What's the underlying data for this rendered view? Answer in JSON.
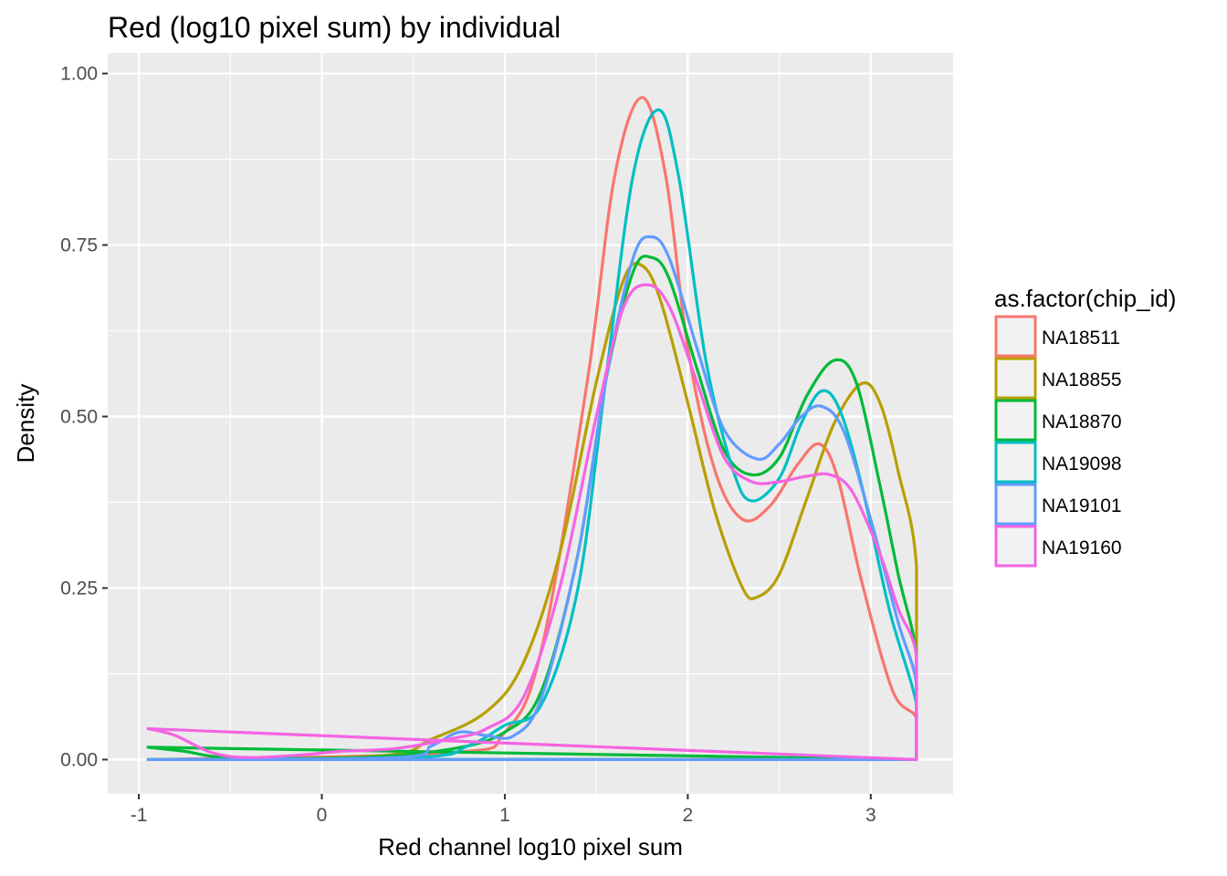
{
  "chart_data": {
    "type": "line",
    "subtype": "density",
    "title": "Red (log10 pixel sum) by individual",
    "xlabel": "Red channel log10 pixel sum",
    "ylabel": "Density",
    "xlim": [
      -1.17,
      3.45
    ],
    "ylim": [
      -0.05,
      1.03
    ],
    "x_ticks": [
      {
        "value": -1,
        "label": "-1"
      },
      {
        "value": 0,
        "label": "0"
      },
      {
        "value": 1,
        "label": "1"
      },
      {
        "value": 2,
        "label": "2"
      },
      {
        "value": 3,
        "label": "3"
      }
    ],
    "y_ticks": [
      {
        "value": 0,
        "label": "0.00"
      },
      {
        "value": 0.25,
        "label": "0.25"
      },
      {
        "value": 0.5,
        "label": "0.50"
      },
      {
        "value": 0.75,
        "label": "0.75"
      },
      {
        "value": 1.0,
        "label": "1.00"
      }
    ],
    "x_minor": [
      -0.5,
      0.5,
      1.5,
      2.5
    ],
    "y_minor": [
      0.125,
      0.375,
      0.625,
      0.875
    ],
    "grid": true,
    "panel_background": "#ebebeb",
    "legend": {
      "title": "as.factor(chip_id)",
      "position": "right"
    },
    "series": [
      {
        "name": "NA18511",
        "color": "#F8766D",
        "points": [
          [
            -0.95,
            0
          ],
          [
            0.7,
            0.01
          ],
          [
            1.0,
            0.04
          ],
          [
            1.2,
            0.16
          ],
          [
            1.45,
            0.55
          ],
          [
            1.6,
            0.85
          ],
          [
            1.75,
            0.965
          ],
          [
            1.88,
            0.85
          ],
          [
            2.0,
            0.6
          ],
          [
            2.15,
            0.42
          ],
          [
            2.3,
            0.35
          ],
          [
            2.45,
            0.37
          ],
          [
            2.6,
            0.43
          ],
          [
            2.72,
            0.46
          ],
          [
            2.82,
            0.41
          ],
          [
            2.95,
            0.26
          ],
          [
            3.12,
            0.1
          ],
          [
            3.25,
            0.06
          ],
          [
            3.25,
            0
          ]
        ]
      },
      {
        "name": "NA18855",
        "color": "#B79F00",
        "points": [
          [
            -0.95,
            0
          ],
          [
            0.3,
            0.005
          ],
          [
            0.6,
            0.03
          ],
          [
            0.9,
            0.07
          ],
          [
            1.1,
            0.14
          ],
          [
            1.3,
            0.3
          ],
          [
            1.5,
            0.55
          ],
          [
            1.65,
            0.7
          ],
          [
            1.75,
            0.72
          ],
          [
            1.85,
            0.67
          ],
          [
            2.0,
            0.52
          ],
          [
            2.15,
            0.36
          ],
          [
            2.3,
            0.25
          ],
          [
            2.38,
            0.237
          ],
          [
            2.5,
            0.27
          ],
          [
            2.65,
            0.38
          ],
          [
            2.8,
            0.49
          ],
          [
            2.95,
            0.548
          ],
          [
            3.05,
            0.52
          ],
          [
            3.15,
            0.42
          ],
          [
            3.25,
            0.28
          ],
          [
            3.25,
            0
          ]
        ]
      },
      {
        "name": "NA18870",
        "color": "#00BA38",
        "points": [
          [
            -0.95,
            0.018
          ],
          [
            -0.75,
            0.012
          ],
          [
            -0.5,
            0.003
          ],
          [
            0.2,
            0.003
          ],
          [
            0.7,
            0.015
          ],
          [
            1.0,
            0.04
          ],
          [
            1.2,
            0.1
          ],
          [
            1.4,
            0.3
          ],
          [
            1.55,
            0.55
          ],
          [
            1.7,
            0.71
          ],
          [
            1.8,
            0.732
          ],
          [
            1.9,
            0.7
          ],
          [
            2.05,
            0.57
          ],
          [
            2.2,
            0.45
          ],
          [
            2.35,
            0.415
          ],
          [
            2.5,
            0.44
          ],
          [
            2.65,
            0.53
          ],
          [
            2.8,
            0.582
          ],
          [
            2.92,
            0.55
          ],
          [
            3.05,
            0.4
          ],
          [
            3.15,
            0.27
          ],
          [
            3.25,
            0.15
          ],
          [
            3.25,
            0
          ]
        ]
      },
      {
        "name": "NA19098",
        "color": "#00BFC4",
        "points": [
          [
            -0.95,
            0
          ],
          [
            0.5,
            0.003
          ],
          [
            0.8,
            0.02
          ],
          [
            1.0,
            0.05
          ],
          [
            1.2,
            0.08
          ],
          [
            1.4,
            0.25
          ],
          [
            1.55,
            0.55
          ],
          [
            1.7,
            0.85
          ],
          [
            1.84,
            0.947
          ],
          [
            1.95,
            0.85
          ],
          [
            2.1,
            0.58
          ],
          [
            2.25,
            0.42
          ],
          [
            2.35,
            0.377
          ],
          [
            2.5,
            0.41
          ],
          [
            2.62,
            0.49
          ],
          [
            2.73,
            0.537
          ],
          [
            2.83,
            0.51
          ],
          [
            2.95,
            0.4
          ],
          [
            3.1,
            0.22
          ],
          [
            3.25,
            0.08
          ],
          [
            3.25,
            0
          ]
        ]
      },
      {
        "name": "NA19101",
        "color": "#619CFF",
        "points": [
          [
            -0.95,
            0
          ],
          [
            0.4,
            0.003
          ],
          [
            0.6,
            0.02
          ],
          [
            0.75,
            0.04
          ],
          [
            0.9,
            0.035
          ],
          [
            1.05,
            0.035
          ],
          [
            1.2,
            0.09
          ],
          [
            1.4,
            0.3
          ],
          [
            1.55,
            0.55
          ],
          [
            1.7,
            0.73
          ],
          [
            1.8,
            0.762
          ],
          [
            1.9,
            0.73
          ],
          [
            2.05,
            0.6
          ],
          [
            2.2,
            0.48
          ],
          [
            2.38,
            0.438
          ],
          [
            2.5,
            0.46
          ],
          [
            2.62,
            0.5
          ],
          [
            2.73,
            0.515
          ],
          [
            2.85,
            0.48
          ],
          [
            3.0,
            0.35
          ],
          [
            3.15,
            0.2
          ],
          [
            3.25,
            0.11
          ],
          [
            3.25,
            0
          ]
        ]
      },
      {
        "name": "NA19160",
        "color": "#F564E3",
        "points": [
          [
            -0.95,
            0.045
          ],
          [
            -0.8,
            0.035
          ],
          [
            -0.6,
            0.01
          ],
          [
            -0.4,
            0.003
          ],
          [
            -0.1,
            0.007
          ],
          [
            0.1,
            0.012
          ],
          [
            0.4,
            0.016
          ],
          [
            0.7,
            0.03
          ],
          [
            0.9,
            0.045
          ],
          [
            1.1,
            0.09
          ],
          [
            1.3,
            0.25
          ],
          [
            1.5,
            0.5
          ],
          [
            1.65,
            0.66
          ],
          [
            1.78,
            0.692
          ],
          [
            1.9,
            0.66
          ],
          [
            2.05,
            0.55
          ],
          [
            2.2,
            0.44
          ],
          [
            2.35,
            0.405
          ],
          [
            2.5,
            0.405
          ],
          [
            2.65,
            0.413
          ],
          [
            2.78,
            0.415
          ],
          [
            2.9,
            0.39
          ],
          [
            3.05,
            0.3
          ],
          [
            3.15,
            0.22
          ],
          [
            3.25,
            0.15
          ],
          [
            3.25,
            0
          ]
        ]
      }
    ]
  }
}
